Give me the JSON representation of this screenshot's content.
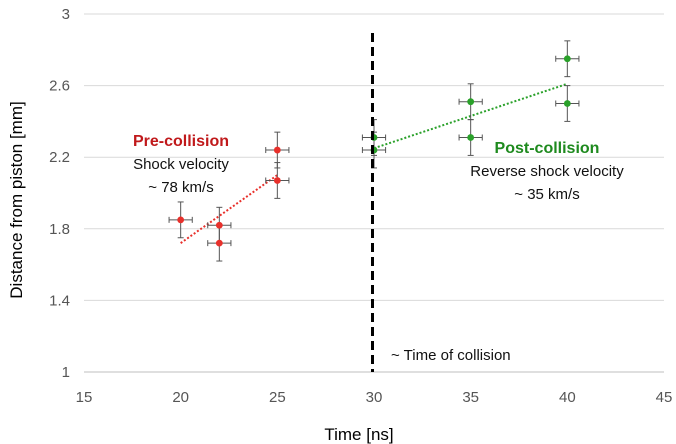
{
  "chart_data": {
    "type": "scatter",
    "xlabel": "Time [ns]",
    "ylabel": "Distance from piston [mm]",
    "xlim": [
      15,
      45
    ],
    "ylim": [
      1,
      3
    ],
    "xticks": [
      15,
      20,
      25,
      30,
      35,
      40,
      45
    ],
    "yticks": [
      1,
      1.4,
      1.8,
      2.2,
      2.6,
      3
    ],
    "ytick_labels": [
      "1",
      "1.4",
      "1.8",
      "2.2",
      "2.6",
      "3"
    ],
    "grid": "horizontal",
    "series": [
      {
        "color": "#e8302b",
        "points": [
          {
            "x": 20,
            "y": 1.85,
            "xerr": 0.6,
            "yerr": 0.1
          },
          {
            "x": 22,
            "y": 1.82,
            "xerr": 0.6,
            "yerr": 0.1
          },
          {
            "x": 22,
            "y": 1.72,
            "xerr": 0.6,
            "yerr": 0.1
          },
          {
            "x": 25,
            "y": 2.24,
            "xerr": 0.6,
            "yerr": 0.1
          },
          {
            "x": 25,
            "y": 2.07,
            "xerr": 0.6,
            "yerr": 0.1
          }
        ],
        "trendline": {
          "x0": 20,
          "y0": 1.72,
          "x1": 25,
          "y1": 2.1
        }
      },
      {
        "color": "#2aa12a",
        "points": [
          {
            "x": 30,
            "y": 2.31,
            "xerr": 0.6,
            "yerr": 0.1
          },
          {
            "x": 30,
            "y": 2.24,
            "xerr": 0.6,
            "yerr": 0.1
          },
          {
            "x": 35,
            "y": 2.51,
            "xerr": 0.6,
            "yerr": 0.1
          },
          {
            "x": 35,
            "y": 2.31,
            "xerr": 0.6,
            "yerr": 0.1
          },
          {
            "x": 40,
            "y": 2.75,
            "xerr": 0.6,
            "yerr": 0.1
          },
          {
            "x": 40,
            "y": 2.5,
            "xerr": 0.6,
            "yerr": 0.1
          }
        ],
        "trendline": {
          "x0": 30,
          "y0": 2.25,
          "x1": 40,
          "y1": 2.61
        }
      }
    ],
    "collision_line_x": 30,
    "annotations": {
      "pre_title": "Pre-collision",
      "pre_line1": "Shock velocity",
      "pre_line2": "~ 78 km/s",
      "post_title": "Post-collision",
      "post_line1": "Reverse shock velocity",
      "post_line2": "~ 35 km/s",
      "collision": "~ Time of collision"
    },
    "colors": {
      "pre": "#c0191b",
      "post": "#1e8a1e",
      "errorbar": "#555555",
      "grid": "#d9d9d9",
      "axis": "#bfbfbf"
    }
  }
}
